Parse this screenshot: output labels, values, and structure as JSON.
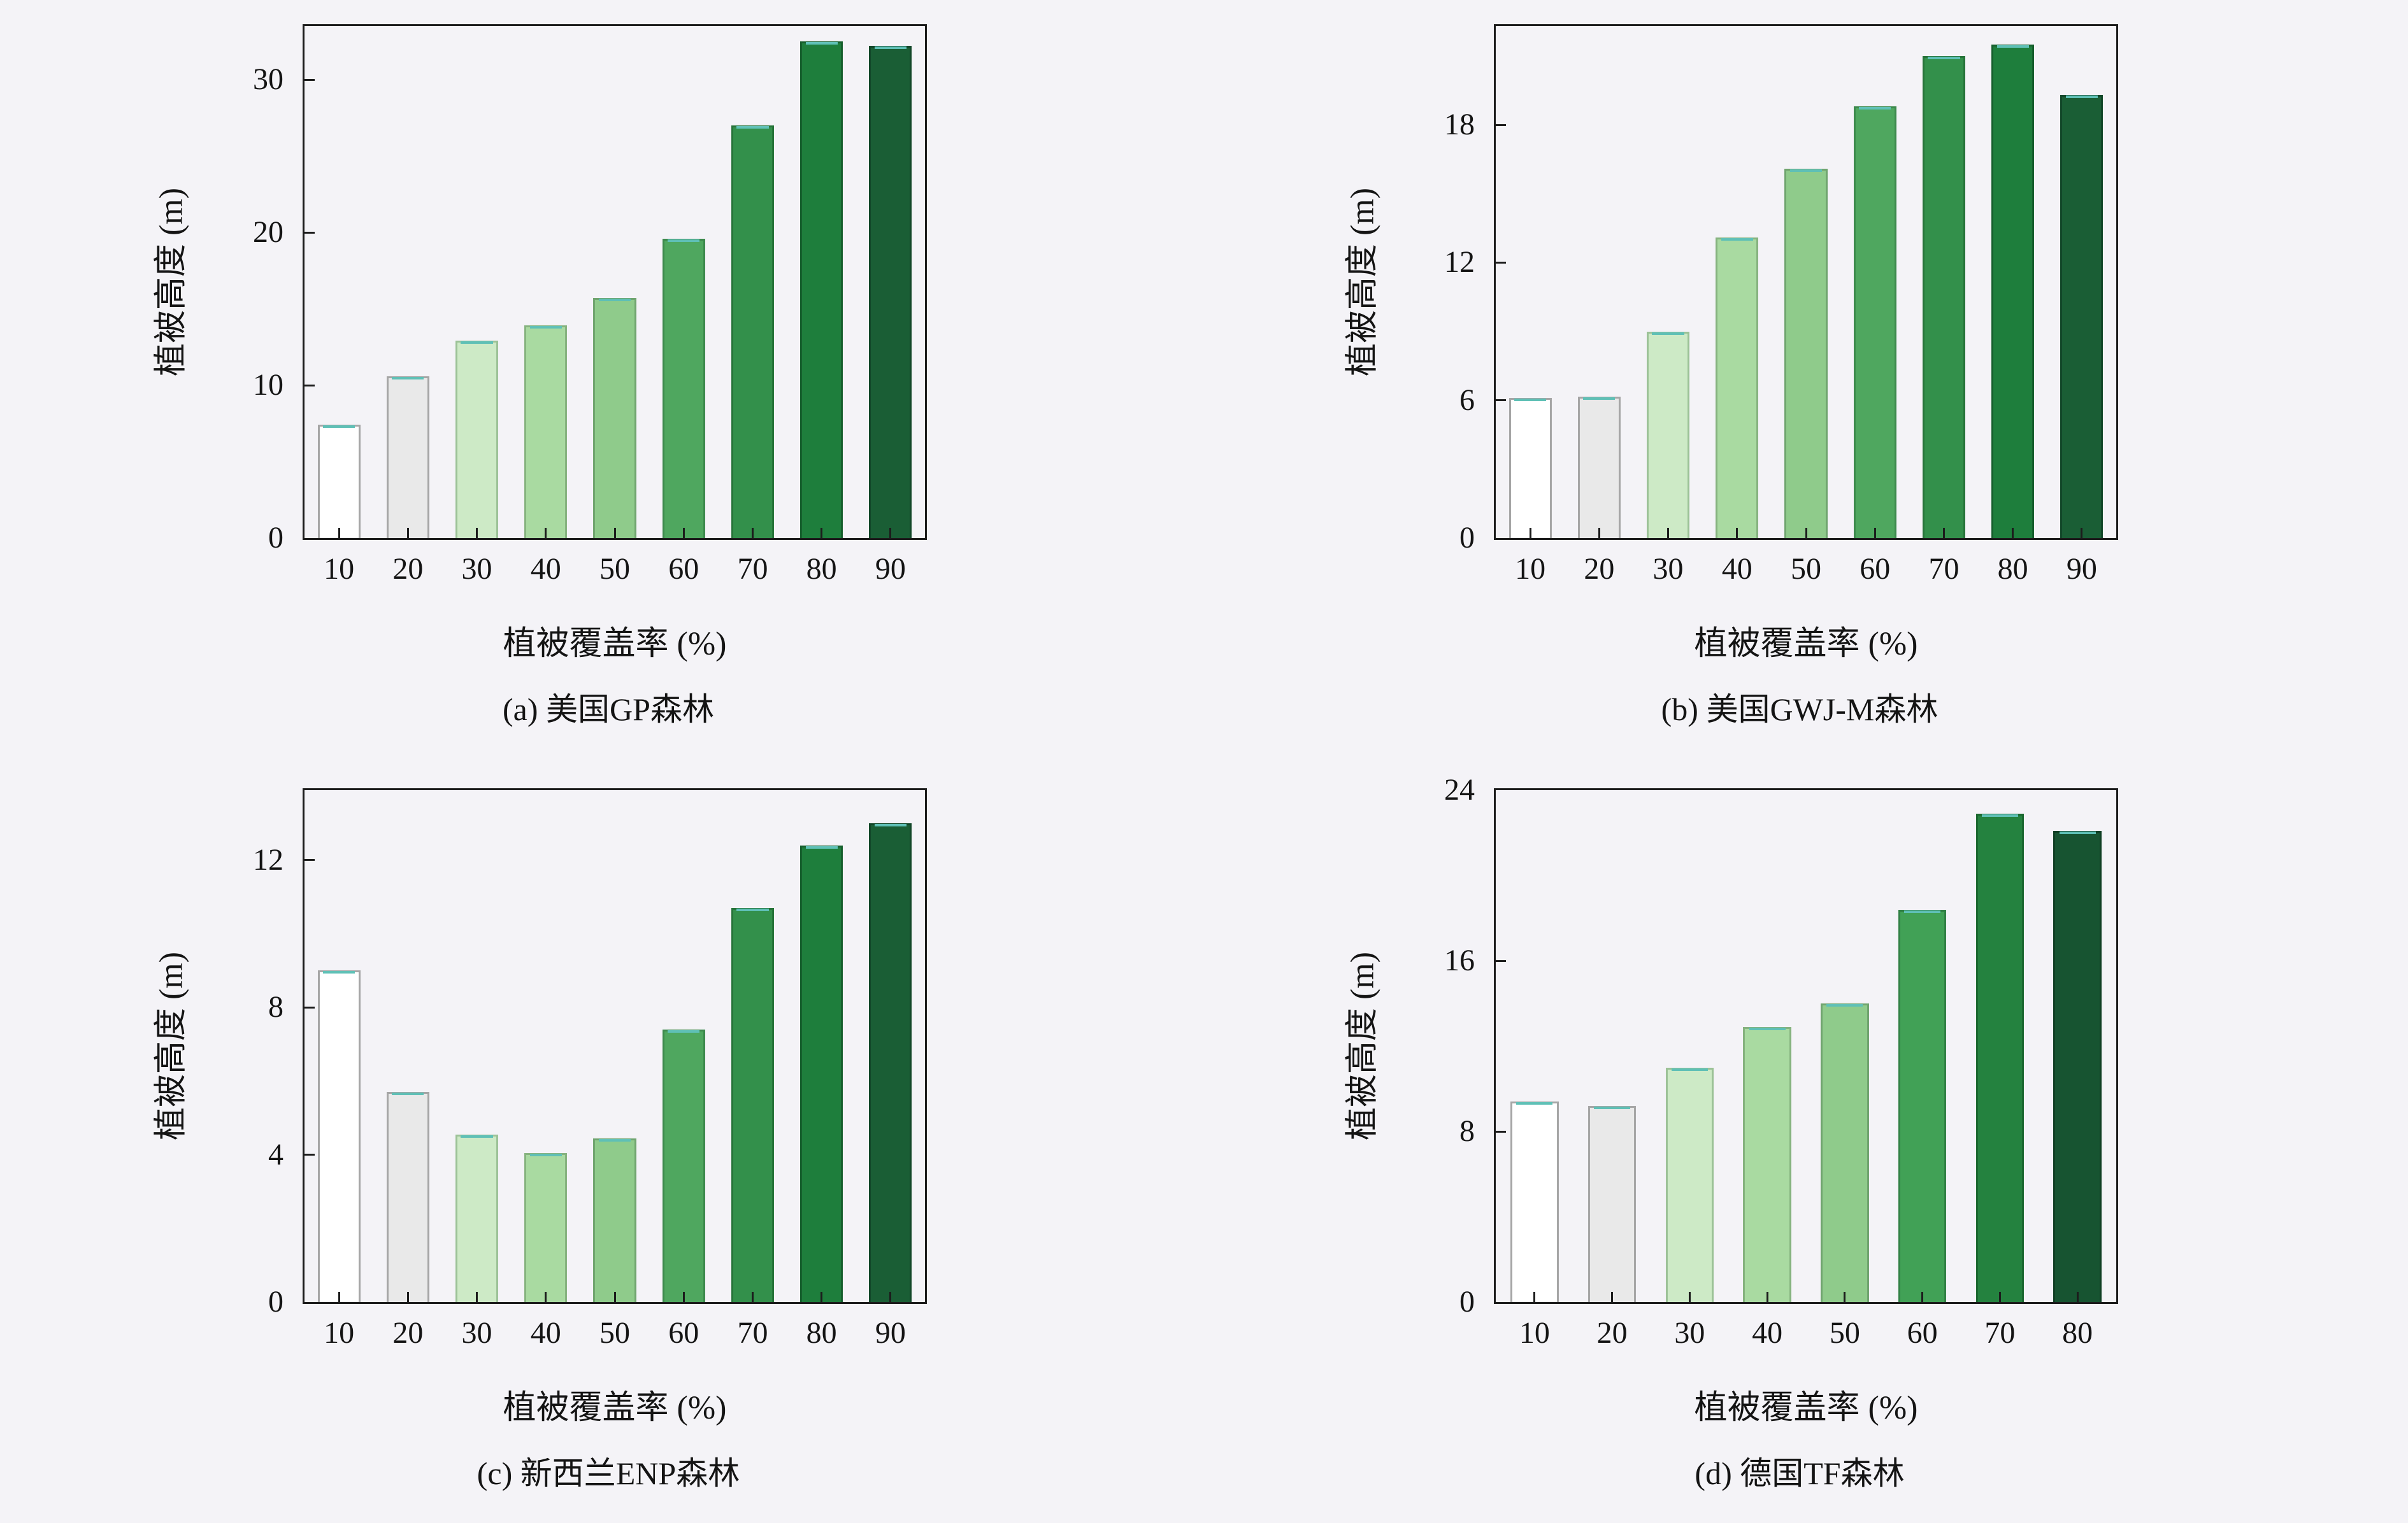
{
  "page": {
    "background": "#f4f3f7"
  },
  "style": {
    "frame_color": "#1c1c1c",
    "cap_color": "#5fc0b6",
    "palettes": {
      "greens9": {
        "fills": [
          "#ffffff",
          "#e9e9e9",
          "#cdeac6",
          "#a9daa1",
          "#8fcb8b",
          "#4fa75f",
          "#33904b",
          "#1e7e3c",
          "#1a5e35"
        ],
        "strokes": [
          "#a6a6a6",
          "#a6a6a6",
          "#9cc297",
          "#86b37f",
          "#70a56f",
          "#3d8a4d",
          "#27743a",
          "#165f2d",
          "#124729"
        ]
      },
      "greens8": {
        "fills": [
          "#ffffff",
          "#e9e9e9",
          "#cdeac6",
          "#a9daa1",
          "#8fcb8b",
          "#41a156",
          "#24823f",
          "#175431"
        ],
        "strokes": [
          "#a6a6a6",
          "#a6a6a6",
          "#9cc297",
          "#86b37f",
          "#70a56f",
          "#318145",
          "#1b6830",
          "#103f24"
        ]
      }
    }
  },
  "chart_data": [
    {
      "id": "a",
      "type": "bar",
      "title": "(a) 美国GP森林",
      "xlabel": "植被覆盖率 (%)",
      "ylabel": "植被高度 (m)",
      "categories": [
        "10",
        "20",
        "30",
        "40",
        "50",
        "60",
        "70",
        "80",
        "90"
      ],
      "values": [
        7.4,
        10.6,
        12.9,
        13.9,
        15.7,
        19.6,
        27.0,
        32.5,
        32.2
      ],
      "ylim": [
        0,
        33.5
      ],
      "yticks": [
        0,
        10,
        20,
        30
      ],
      "palette": "greens9",
      "grid": false,
      "legend": false
    },
    {
      "id": "b",
      "type": "bar",
      "title": "(b) 美国GWJ-M森林",
      "xlabel": "植被覆盖率 (%)",
      "ylabel": "植被高度 (m)",
      "categories": [
        "10",
        "20",
        "30",
        "40",
        "50",
        "60",
        "70",
        "80",
        "90"
      ],
      "values": [
        6.1,
        6.15,
        9.0,
        13.1,
        16.1,
        18.8,
        21.0,
        21.5,
        19.3
      ],
      "ylim": [
        0,
        22.3
      ],
      "yticks": [
        0,
        6,
        12,
        18
      ],
      "palette": "greens9",
      "grid": false,
      "legend": false
    },
    {
      "id": "c",
      "type": "bar",
      "title": "(c) 新西兰ENP森林",
      "xlabel": "植被覆盖率 (%)",
      "ylabel": "植被高度 (m)",
      "categories": [
        "10",
        "20",
        "30",
        "40",
        "50",
        "60",
        "70",
        "80",
        "90"
      ],
      "values": [
        9.0,
        5.7,
        4.55,
        4.05,
        4.45,
        7.4,
        10.7,
        12.4,
        13.0
      ],
      "ylim": [
        0,
        13.9
      ],
      "yticks": [
        0,
        4,
        8,
        12
      ],
      "palette": "greens9",
      "grid": false,
      "legend": false
    },
    {
      "id": "d",
      "type": "bar",
      "title": "(d) 德国TF森林",
      "xlabel": "植被覆盖率 (%)",
      "ylabel": "植被高度 (m)",
      "categories": [
        "10",
        "20",
        "30",
        "40",
        "50",
        "60",
        "70",
        "80"
      ],
      "values": [
        9.4,
        9.2,
        11.0,
        12.9,
        14.0,
        18.4,
        22.9,
        22.1
      ],
      "ylim": [
        0,
        24
      ],
      "yticks": [
        0,
        8,
        16,
        24
      ],
      "palette": "greens8",
      "grid": false,
      "legend": false
    }
  ]
}
